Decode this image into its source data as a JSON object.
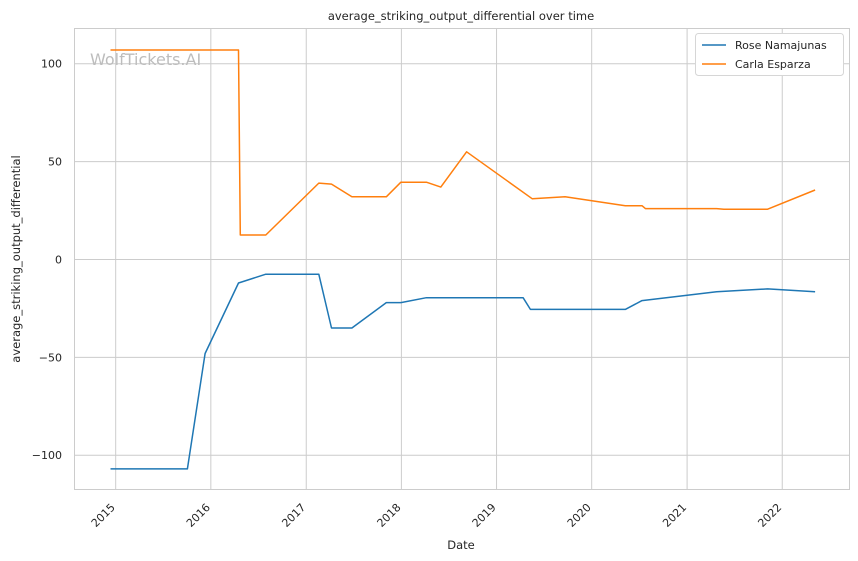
{
  "chart_data": {
    "type": "line",
    "title": "average_striking_output_differential over time",
    "xlabel": "Date",
    "ylabel": "average_striking_output_differential",
    "watermark": "WolfTickets.AI",
    "x_ticks": [
      "2015",
      "2016",
      "2017",
      "2018",
      "2019",
      "2020",
      "2021",
      "2022"
    ],
    "y_ticks": [
      {
        "value": 100,
        "label": "100"
      },
      {
        "value": 50,
        "label": "50"
      },
      {
        "value": 0,
        "label": "0"
      },
      {
        "value": -50,
        "label": "−50"
      },
      {
        "value": -100,
        "label": "−100"
      }
    ],
    "xlim": [
      "2014-07-27",
      "2022-09-16"
    ],
    "ylim": [
      -117.5,
      118
    ],
    "grid": true,
    "legend_position": "top-right",
    "series": [
      {
        "name": "Rose Namajunas",
        "color": "#1f77b4",
        "points": [
          [
            "2014-12-12",
            -107
          ],
          [
            "2015-10-03",
            -107
          ],
          [
            "2015-12-10",
            -48
          ],
          [
            "2016-04-16",
            -12
          ],
          [
            "2016-07-30",
            -7.5
          ],
          [
            "2017-02-18",
            -7.5
          ],
          [
            "2017-04-08",
            -35
          ],
          [
            "2017-06-25",
            -35
          ],
          [
            "2017-11-04",
            -22
          ],
          [
            "2017-12-30",
            -22
          ],
          [
            "2018-04-07",
            -19.5
          ],
          [
            "2019-04-13",
            -19.5
          ],
          [
            "2019-05-11",
            -25.5
          ],
          [
            "2020-05-09",
            -25.5
          ],
          [
            "2020-07-12",
            -21
          ],
          [
            "2021-04-24",
            -16.5
          ],
          [
            "2021-11-06",
            -15
          ],
          [
            "2022-05-07",
            -16.5
          ]
        ]
      },
      {
        "name": "Carla Esparza",
        "color": "#ff7f0e",
        "points": [
          [
            "2014-12-12",
            107
          ],
          [
            "2016-04-16",
            107
          ],
          [
            "2016-04-23",
            12.5
          ],
          [
            "2016-07-30",
            12.5
          ],
          [
            "2017-02-18",
            39
          ],
          [
            "2017-04-08",
            38.5
          ],
          [
            "2017-06-25",
            32
          ],
          [
            "2017-11-04",
            32
          ],
          [
            "2017-12-30",
            39.5
          ],
          [
            "2018-04-07",
            39.5
          ],
          [
            "2018-06-01",
            37
          ],
          [
            "2018-09-08",
            55
          ],
          [
            "2019-05-18",
            31
          ],
          [
            "2019-09-21",
            32
          ],
          [
            "2020-05-09",
            27.5
          ],
          [
            "2020-07-12",
            27.5
          ],
          [
            "2020-07-25",
            26
          ],
          [
            "2021-04-24",
            26
          ],
          [
            "2021-05-22",
            25.7
          ],
          [
            "2021-11-06",
            25.7
          ],
          [
            "2022-05-07",
            35.5
          ]
        ]
      }
    ]
  }
}
